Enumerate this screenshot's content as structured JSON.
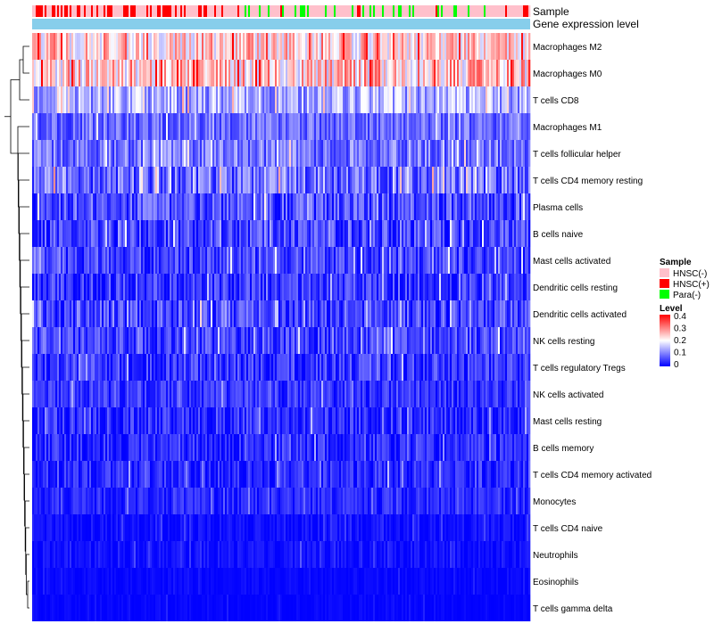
{
  "chart_data": {
    "type": "heatmap",
    "title": "",
    "annotation_rows": [
      {
        "name": "Sample"
      },
      {
        "name": "Gene expression level"
      }
    ],
    "rows": [
      {
        "label": "Macrophages M2",
        "mean": 0.23,
        "spread": 0.08
      },
      {
        "label": "Macrophages M0",
        "mean": 0.24,
        "spread": 0.1
      },
      {
        "label": "T cells CD8",
        "mean": 0.13,
        "spread": 0.07
      },
      {
        "label": "Macrophages M1",
        "mean": 0.08,
        "spread": 0.05
      },
      {
        "label": "T cells follicular helper",
        "mean": 0.09,
        "spread": 0.06
      },
      {
        "label": "T cells CD4 memory resting",
        "mean": 0.08,
        "spread": 0.07
      },
      {
        "label": "Plasma cells",
        "mean": 0.06,
        "spread": 0.06
      },
      {
        "label": "B cells naive",
        "mean": 0.05,
        "spread": 0.06
      },
      {
        "label": "Mast cells activated",
        "mean": 0.05,
        "spread": 0.05
      },
      {
        "label": "Dendritic cells resting",
        "mean": 0.04,
        "spread": 0.05
      },
      {
        "label": "Dendritic cells activated",
        "mean": 0.05,
        "spread": 0.06
      },
      {
        "label": "NK cells resting",
        "mean": 0.05,
        "spread": 0.05
      },
      {
        "label": "T cells regulatory  Tregs",
        "mean": 0.04,
        "spread": 0.05
      },
      {
        "label": "NK cells activated",
        "mean": 0.04,
        "spread": 0.04
      },
      {
        "label": "Mast cells resting",
        "mean": 0.03,
        "spread": 0.05
      },
      {
        "label": "B cells memory",
        "mean": 0.03,
        "spread": 0.04
      },
      {
        "label": "T cells CD4 memory activated",
        "mean": 0.03,
        "spread": 0.04
      },
      {
        "label": "Monocytes",
        "mean": 0.03,
        "spread": 0.03
      },
      {
        "label": "T cells CD4 naive",
        "mean": 0.01,
        "spread": 0.02
      },
      {
        "label": "Neutrophils",
        "mean": 0.01,
        "spread": 0.02
      },
      {
        "label": "Eosinophils",
        "mean": 0.005,
        "spread": 0.01
      },
      {
        "label": "T cells gamma delta",
        "mean": 0.002,
        "spread": 0.01
      }
    ],
    "sample_groups": [
      {
        "name": "HNSC(-)",
        "color": "#FFC0CB",
        "share": 0.6
      },
      {
        "name": "HNSC(+)",
        "color": "#FF0000",
        "share": 0.3
      },
      {
        "name": "Para(-)",
        "color": "#00FF00",
        "share": 0.1
      }
    ],
    "expression_level_color": "#87CEEB",
    "color_scale": {
      "name": "Level",
      "min": 0,
      "max": 0.4,
      "low_color": "#0000FF",
      "mid_color": "#FFFFFF",
      "high_color": "#FF0000",
      "mid_value": 0.2,
      "ticks": [
        "0.4",
        "0.3",
        "0.2",
        "0.1",
        "0"
      ]
    },
    "legend_placement": "right"
  }
}
